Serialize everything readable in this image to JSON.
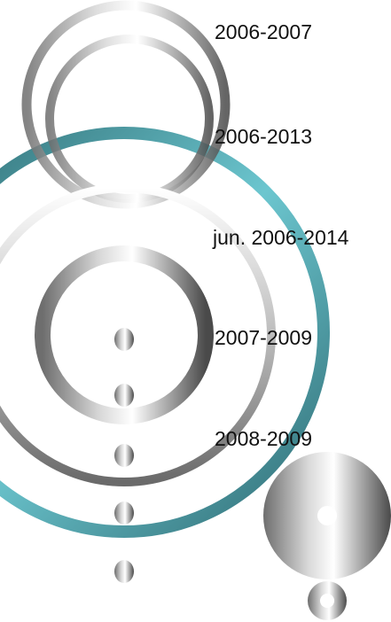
{
  "labels": [
    "2006-2007",
    "2006-2013",
    "jun. 2006-2014",
    "2007-2009",
    "2008-2009"
  ]
}
